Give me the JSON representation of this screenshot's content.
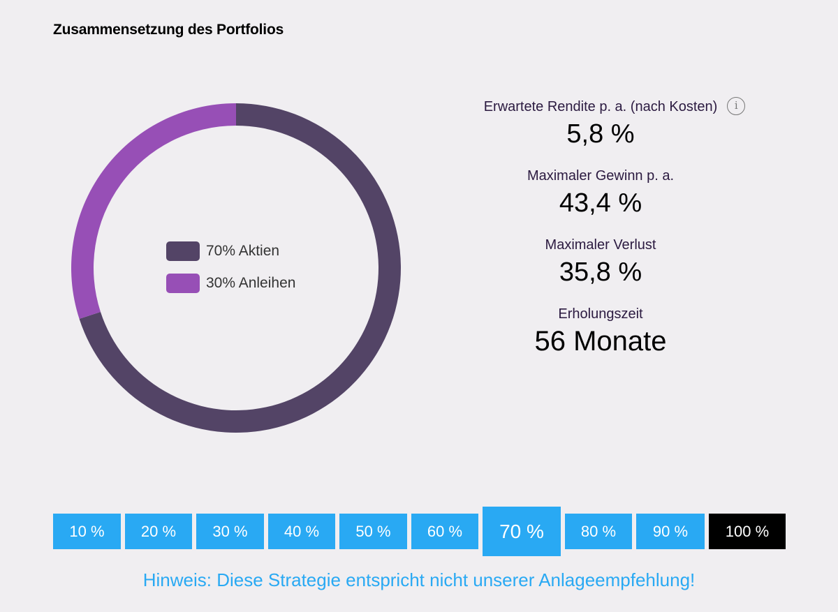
{
  "title": "Zusammensetzung des Portfolios",
  "chart_data": {
    "type": "pie",
    "donut": true,
    "slices": [
      {
        "label": "70% Aktien",
        "value": 70,
        "color": "#534466"
      },
      {
        "label": "30% Anleihen",
        "value": 30,
        "color": "#974fb6"
      }
    ],
    "legend_position": "center"
  },
  "metrics": {
    "rendite_label": "Erwartete Rendite p. a. (nach Kosten)",
    "rendite_value": "5,8 %",
    "gewinn_label": "Maximaler Gewinn p. a.",
    "gewinn_value": "43,4 %",
    "verlust_label": "Maximaler Verlust",
    "verlust_value": "35,8 %",
    "erholung_label": "Erholungszeit",
    "erholung_value": "56 Monate",
    "info_icon": "i"
  },
  "allocation_options": [
    "10 %",
    "20 %",
    "30 %",
    "40 %",
    "50 %",
    "60 %",
    "70 %",
    "80 %",
    "90 %",
    "100 %"
  ],
  "selected_option": "70 %",
  "hint": "Hinweis: Diese Strategie entspricht nicht unserer Anlageempfehlung!",
  "colors": {
    "accent": "#29a9f3",
    "stocks": "#534466",
    "bonds": "#974fb6"
  }
}
